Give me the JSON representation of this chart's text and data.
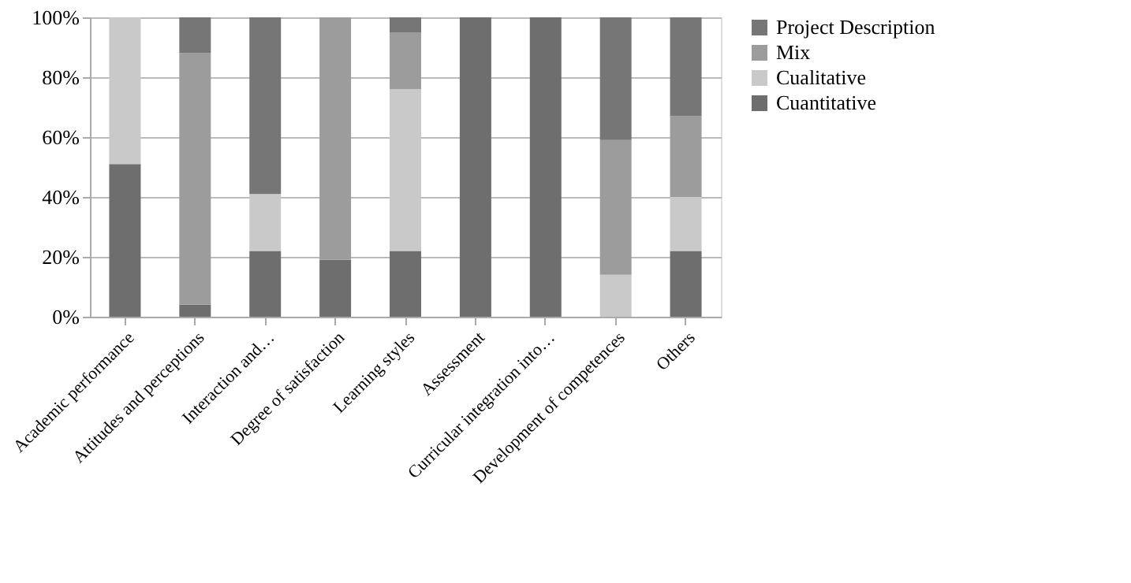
{
  "chart_data": {
    "type": "bar",
    "stacked": true,
    "categories": [
      "Academic performance",
      "Attitudes and perceptions",
      "Interaction and…",
      "Degree of satisfaction",
      "Learning styles",
      "Assessment",
      "Curricular integration into…",
      "Development of competences",
      "Others"
    ],
    "series": [
      {
        "name": "Cuantitative",
        "color": "#6e6e6e",
        "values": [
          51,
          4,
          22,
          19,
          22,
          100,
          100,
          0,
          22
        ]
      },
      {
        "name": "Cualitative",
        "color": "#c9c9c9",
        "values": [
          49,
          0,
          19,
          0,
          54,
          0,
          0,
          14,
          18
        ]
      },
      {
        "name": "Mix",
        "color": "#9c9c9c",
        "values": [
          0,
          84,
          0,
          81,
          19,
          0,
          0,
          45,
          27
        ]
      },
      {
        "name": "Project Description",
        "color": "#767676",
        "values": [
          0,
          12,
          59,
          0,
          5,
          0,
          0,
          41,
          33
        ]
      }
    ],
    "ylim": [
      0,
      100
    ],
    "yticks": [
      {
        "value": 0,
        "label": "0%"
      },
      {
        "value": 20,
        "label": "20%"
      },
      {
        "value": 40,
        "label": "40%"
      },
      {
        "value": 60,
        "label": "60%"
      },
      {
        "value": 80,
        "label": "80%"
      },
      {
        "value": 100,
        "label": "100%"
      }
    ],
    "grid": "y",
    "legend": "right"
  }
}
